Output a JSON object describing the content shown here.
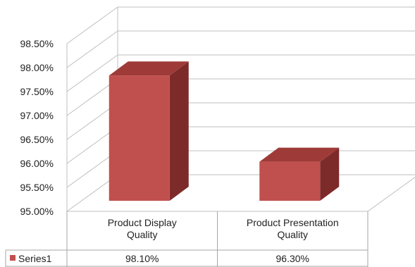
{
  "chart_data": {
    "type": "bar",
    "categories": [
      [
        "Product Display",
        "Quality"
      ],
      [
        "Product Presentation",
        "Quality"
      ]
    ],
    "series": [
      {
        "name": "Series1",
        "values": [
          98.1,
          96.3
        ],
        "labels": [
          "98.10%",
          "96.30%"
        ],
        "color": "#c0504d"
      }
    ],
    "ylim": [
      95.0,
      98.5
    ],
    "yticks": [
      "95.00%",
      "95.50%",
      "96.00%",
      "96.50%",
      "97.00%",
      "97.50%",
      "98.00%",
      "98.50%"
    ],
    "grid": true,
    "data_table": true,
    "colors": {
      "bar_front": "#c0504d",
      "bar_side": "#7d2b2a",
      "bar_top": "#9e3b38",
      "grid": "#bfbfbf"
    }
  }
}
